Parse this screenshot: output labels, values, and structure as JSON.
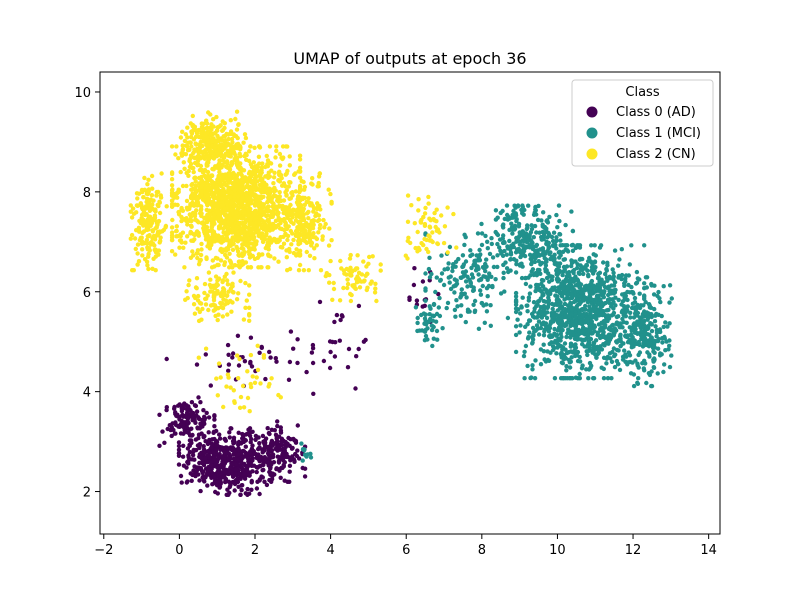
{
  "chart_data": {
    "type": "scatter",
    "title": "UMAP of outputs at epoch 36",
    "xlabel": "",
    "ylabel": "",
    "xlim": [
      -2.1,
      14.3
    ],
    "ylim": [
      1.15,
      10.4
    ],
    "xticks": [
      "−2",
      "0",
      "2",
      "4",
      "6",
      "8",
      "10",
      "12",
      "14"
    ],
    "xtick_values": [
      -2,
      0,
      2,
      4,
      6,
      8,
      10,
      12,
      14
    ],
    "yticks": [
      "2",
      "4",
      "6",
      "8",
      "10"
    ],
    "ytick_values": [
      2,
      4,
      6,
      8,
      10
    ],
    "grid": false,
    "legend": {
      "title": "Class",
      "placement": "top-right",
      "entries": [
        "Class 0 (AD)",
        "Class 1 (MCI)",
        "Class 2 (CN)"
      ]
    },
    "series": [
      {
        "name": "Class 0 (AD)",
        "color": "#440154",
        "clusters": [
          {
            "center": [
              1.2,
              2.6
            ],
            "spread": [
              1.0,
              0.55
            ],
            "count": 520
          },
          {
            "center": [
              2.6,
              2.8
            ],
            "spread": [
              0.6,
              0.5
            ],
            "count": 160
          },
          {
            "center": [
              0.2,
              3.4
            ],
            "spread": [
              0.6,
              0.4
            ],
            "count": 120
          },
          {
            "center": [
              1.6,
              4.6
            ],
            "spread": [
              1.6,
              0.5
            ],
            "count": 40
          },
          {
            "center": [
              4.2,
              5.0
            ],
            "spread": [
              0.6,
              0.9
            ],
            "count": 25
          },
          {
            "center": [
              6.4,
              6.0
            ],
            "spread": [
              0.5,
              0.5
            ],
            "count": 15
          }
        ]
      },
      {
        "name": "Class 1 (MCI)",
        "color": "#21918c",
        "clusters": [
          {
            "center": [
              10.6,
              5.6
            ],
            "spread": [
              1.4,
              1.1
            ],
            "count": 1100
          },
          {
            "center": [
              9.2,
              7.0
            ],
            "spread": [
              1.0,
              0.6
            ],
            "count": 280
          },
          {
            "center": [
              12.3,
              5.2
            ],
            "spread": [
              0.6,
              0.9
            ],
            "count": 220
          },
          {
            "center": [
              7.6,
              6.2
            ],
            "spread": [
              0.9,
              0.8
            ],
            "count": 160
          },
          {
            "center": [
              6.6,
              5.4
            ],
            "spread": [
              0.3,
              0.4
            ],
            "count": 40
          },
          {
            "center": [
              3.3,
              2.8
            ],
            "spread": [
              0.15,
              0.25
            ],
            "count": 10
          }
        ]
      },
      {
        "name": "Class 2 (CN)",
        "color": "#fde725",
        "clusters": [
          {
            "center": [
              1.5,
              7.7
            ],
            "spread": [
              1.4,
              1.0
            ],
            "count": 1500
          },
          {
            "center": [
              0.8,
              9.0
            ],
            "spread": [
              0.8,
              0.5
            ],
            "count": 250
          },
          {
            "center": [
              -0.8,
              7.4
            ],
            "spread": [
              0.4,
              0.8
            ],
            "count": 200
          },
          {
            "center": [
              3.3,
              7.4
            ],
            "spread": [
              0.6,
              0.8
            ],
            "count": 200
          },
          {
            "center": [
              1.0,
              5.9
            ],
            "spread": [
              0.7,
              0.4
            ],
            "count": 120
          },
          {
            "center": [
              4.6,
              6.3
            ],
            "spread": [
              0.6,
              0.4
            ],
            "count": 70
          },
          {
            "center": [
              6.6,
              7.2
            ],
            "spread": [
              0.6,
              0.6
            ],
            "count": 60
          },
          {
            "center": [
              1.5,
              4.2
            ],
            "spread": [
              1.2,
              0.6
            ],
            "count": 40
          }
        ]
      }
    ]
  }
}
